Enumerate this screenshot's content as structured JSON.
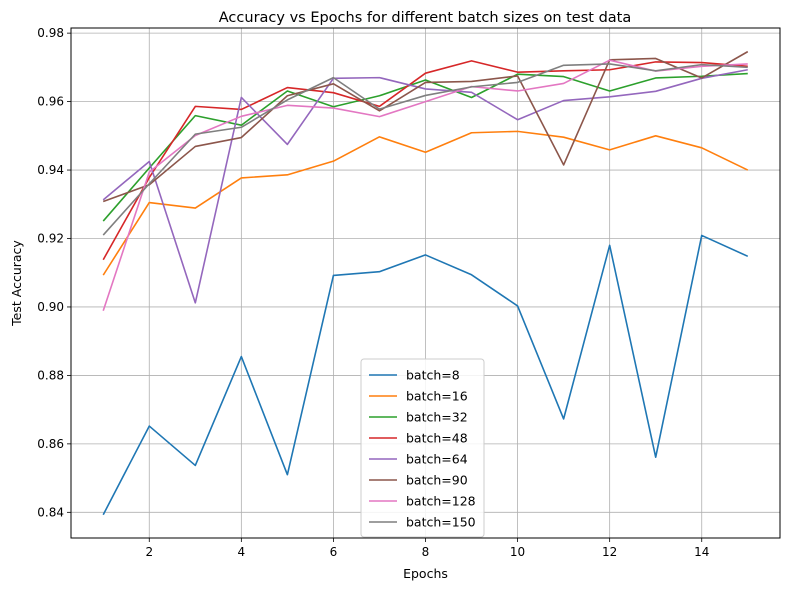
{
  "chart_data": {
    "type": "line",
    "title": "Accuracy vs Epochs for different batch sizes on test data",
    "xlabel": "Epochs",
    "ylabel": "Test Accuracy",
    "xlim": [
      0.3,
      15.7
    ],
    "ylim": [
      0.8325,
      0.9815
    ],
    "xticks": [
      2,
      4,
      6,
      8,
      10,
      12,
      14
    ],
    "yticks": [
      0.84,
      0.86,
      0.88,
      0.9,
      0.92,
      0.94,
      0.96,
      0.98
    ],
    "ytick_labels": [
      "0.84",
      "0.86",
      "0.88",
      "0.90",
      "0.92",
      "0.94",
      "0.96",
      "0.98"
    ],
    "grid": true,
    "legend_position": "lower center",
    "x": [
      1,
      2,
      3,
      4,
      5,
      6,
      7,
      8,
      9,
      10,
      11,
      12,
      13,
      14,
      15
    ],
    "series": [
      {
        "name": "batch=8",
        "color": "#1f77b4",
        "values": [
          0.8393,
          0.8652,
          0.8537,
          0.8855,
          0.851,
          0.9092,
          0.9103,
          0.9152,
          0.9094,
          0.9003,
          0.8673,
          0.918,
          0.8561,
          0.9209,
          0.9148
        ]
      },
      {
        "name": "batch=16",
        "color": "#ff7f0e",
        "values": [
          0.9093,
          0.9305,
          0.9289,
          0.9377,
          0.9386,
          0.9426,
          0.9497,
          0.9452,
          0.9509,
          0.9513,
          0.9496,
          0.9459,
          0.95,
          0.9465,
          0.94
        ]
      },
      {
        "name": "batch=32",
        "color": "#2ca02c",
        "values": [
          0.9251,
          0.9406,
          0.9559,
          0.9531,
          0.9631,
          0.9585,
          0.9617,
          0.9663,
          0.9612,
          0.968,
          0.9673,
          0.9631,
          0.9669,
          0.9674,
          0.9682
        ]
      },
      {
        "name": "batch=48",
        "color": "#d62728",
        "values": [
          0.9138,
          0.9378,
          0.9586,
          0.9577,
          0.9641,
          0.9626,
          0.9586,
          0.9683,
          0.9719,
          0.9686,
          0.969,
          0.9693,
          0.9716,
          0.9714,
          0.9703
        ]
      },
      {
        "name": "batch=64",
        "color": "#9467bd",
        "values": [
          0.9313,
          0.9425,
          0.9012,
          0.9612,
          0.9475,
          0.9668,
          0.967,
          0.9637,
          0.9627,
          0.9547,
          0.9603,
          0.9614,
          0.963,
          0.9668,
          0.9693
        ]
      },
      {
        "name": "batch=90",
        "color": "#8c564b",
        "values": [
          0.9308,
          0.9357,
          0.9469,
          0.9495,
          0.9617,
          0.9652,
          0.9573,
          0.9656,
          0.9659,
          0.9675,
          0.9415,
          0.9722,
          0.9726,
          0.9669,
          0.9746
        ]
      },
      {
        "name": "batch=128",
        "color": "#e377c2",
        "values": [
          0.8989,
          0.9394,
          0.9501,
          0.9557,
          0.9589,
          0.9581,
          0.9556,
          0.96,
          0.9644,
          0.9631,
          0.9653,
          0.9721,
          0.9689,
          0.9703,
          0.971
        ]
      },
      {
        "name": "batch=150",
        "color": "#7f7f7f",
        "values": [
          0.921,
          0.936,
          0.9505,
          0.9525,
          0.9605,
          0.967,
          0.9578,
          0.9618,
          0.9643,
          0.9656,
          0.9706,
          0.971,
          0.969,
          0.9708,
          0.97
        ]
      }
    ]
  }
}
